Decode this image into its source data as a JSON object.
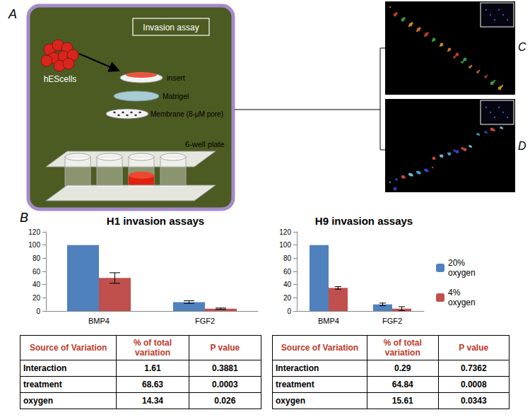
{
  "panel_letters": {
    "a": "A",
    "b": "B",
    "c": "C",
    "d": "D"
  },
  "diagram": {
    "title": "Invasion assay",
    "cells": "hEScells",
    "layers": [
      "insert",
      "Matrigel",
      "Membrane (8-μM pore)"
    ],
    "plate": "6-well plate"
  },
  "chart_data": [
    {
      "type": "bar",
      "title": "H1 invasion assays",
      "categories": [
        "BMP4",
        "FGF2"
      ],
      "series": [
        {
          "name": "20% oxygen",
          "color": "#4f81bd",
          "values": [
            100,
            13.5
          ],
          "errors": [
            null,
            2
          ]
        },
        {
          "name": "4% oxygen",
          "color": "#c0504d",
          "values": [
            50,
            3.5
          ],
          "errors": [
            8,
            1
          ]
        }
      ],
      "ylim": [
        0,
        120
      ],
      "yticks": [
        0,
        20,
        40,
        60,
        80,
        100,
        120
      ],
      "grid": false
    },
    {
      "type": "bar",
      "title": "H9 invasion assays",
      "categories": [
        "BMP4",
        "FGF2"
      ],
      "series": [
        {
          "name": "20% oxygen",
          "color": "#4f81bd",
          "values": [
            100,
            10
          ],
          "errors": [
            null,
            2
          ]
        },
        {
          "name": "4% oxygen",
          "color": "#c0504d",
          "values": [
            35,
            3.5
          ],
          "errors": [
            2,
            3
          ]
        }
      ],
      "ylim": [
        0,
        120
      ],
      "yticks": [
        0,
        20,
        40,
        60,
        80,
        100,
        120
      ],
      "grid": false,
      "legend": "right"
    }
  ],
  "tables": [
    {
      "header": [
        "Source of Variation",
        "% of total variation",
        "P value"
      ],
      "rows": [
        [
          "Interaction",
          "1.61",
          "0.3881"
        ],
        [
          "treatment",
          "68.63",
          "0.0003"
        ],
        [
          "oxygen",
          "14.34",
          "0.026"
        ]
      ]
    },
    {
      "header": [
        "Source of Variation",
        "% of total variation",
        "P value"
      ],
      "rows": [
        [
          "Interaction",
          "0.29",
          "0.7362"
        ],
        [
          "treatment",
          "64.84",
          "0.0008"
        ],
        [
          "oxygen",
          "15.61",
          "0.0343"
        ]
      ]
    }
  ]
}
